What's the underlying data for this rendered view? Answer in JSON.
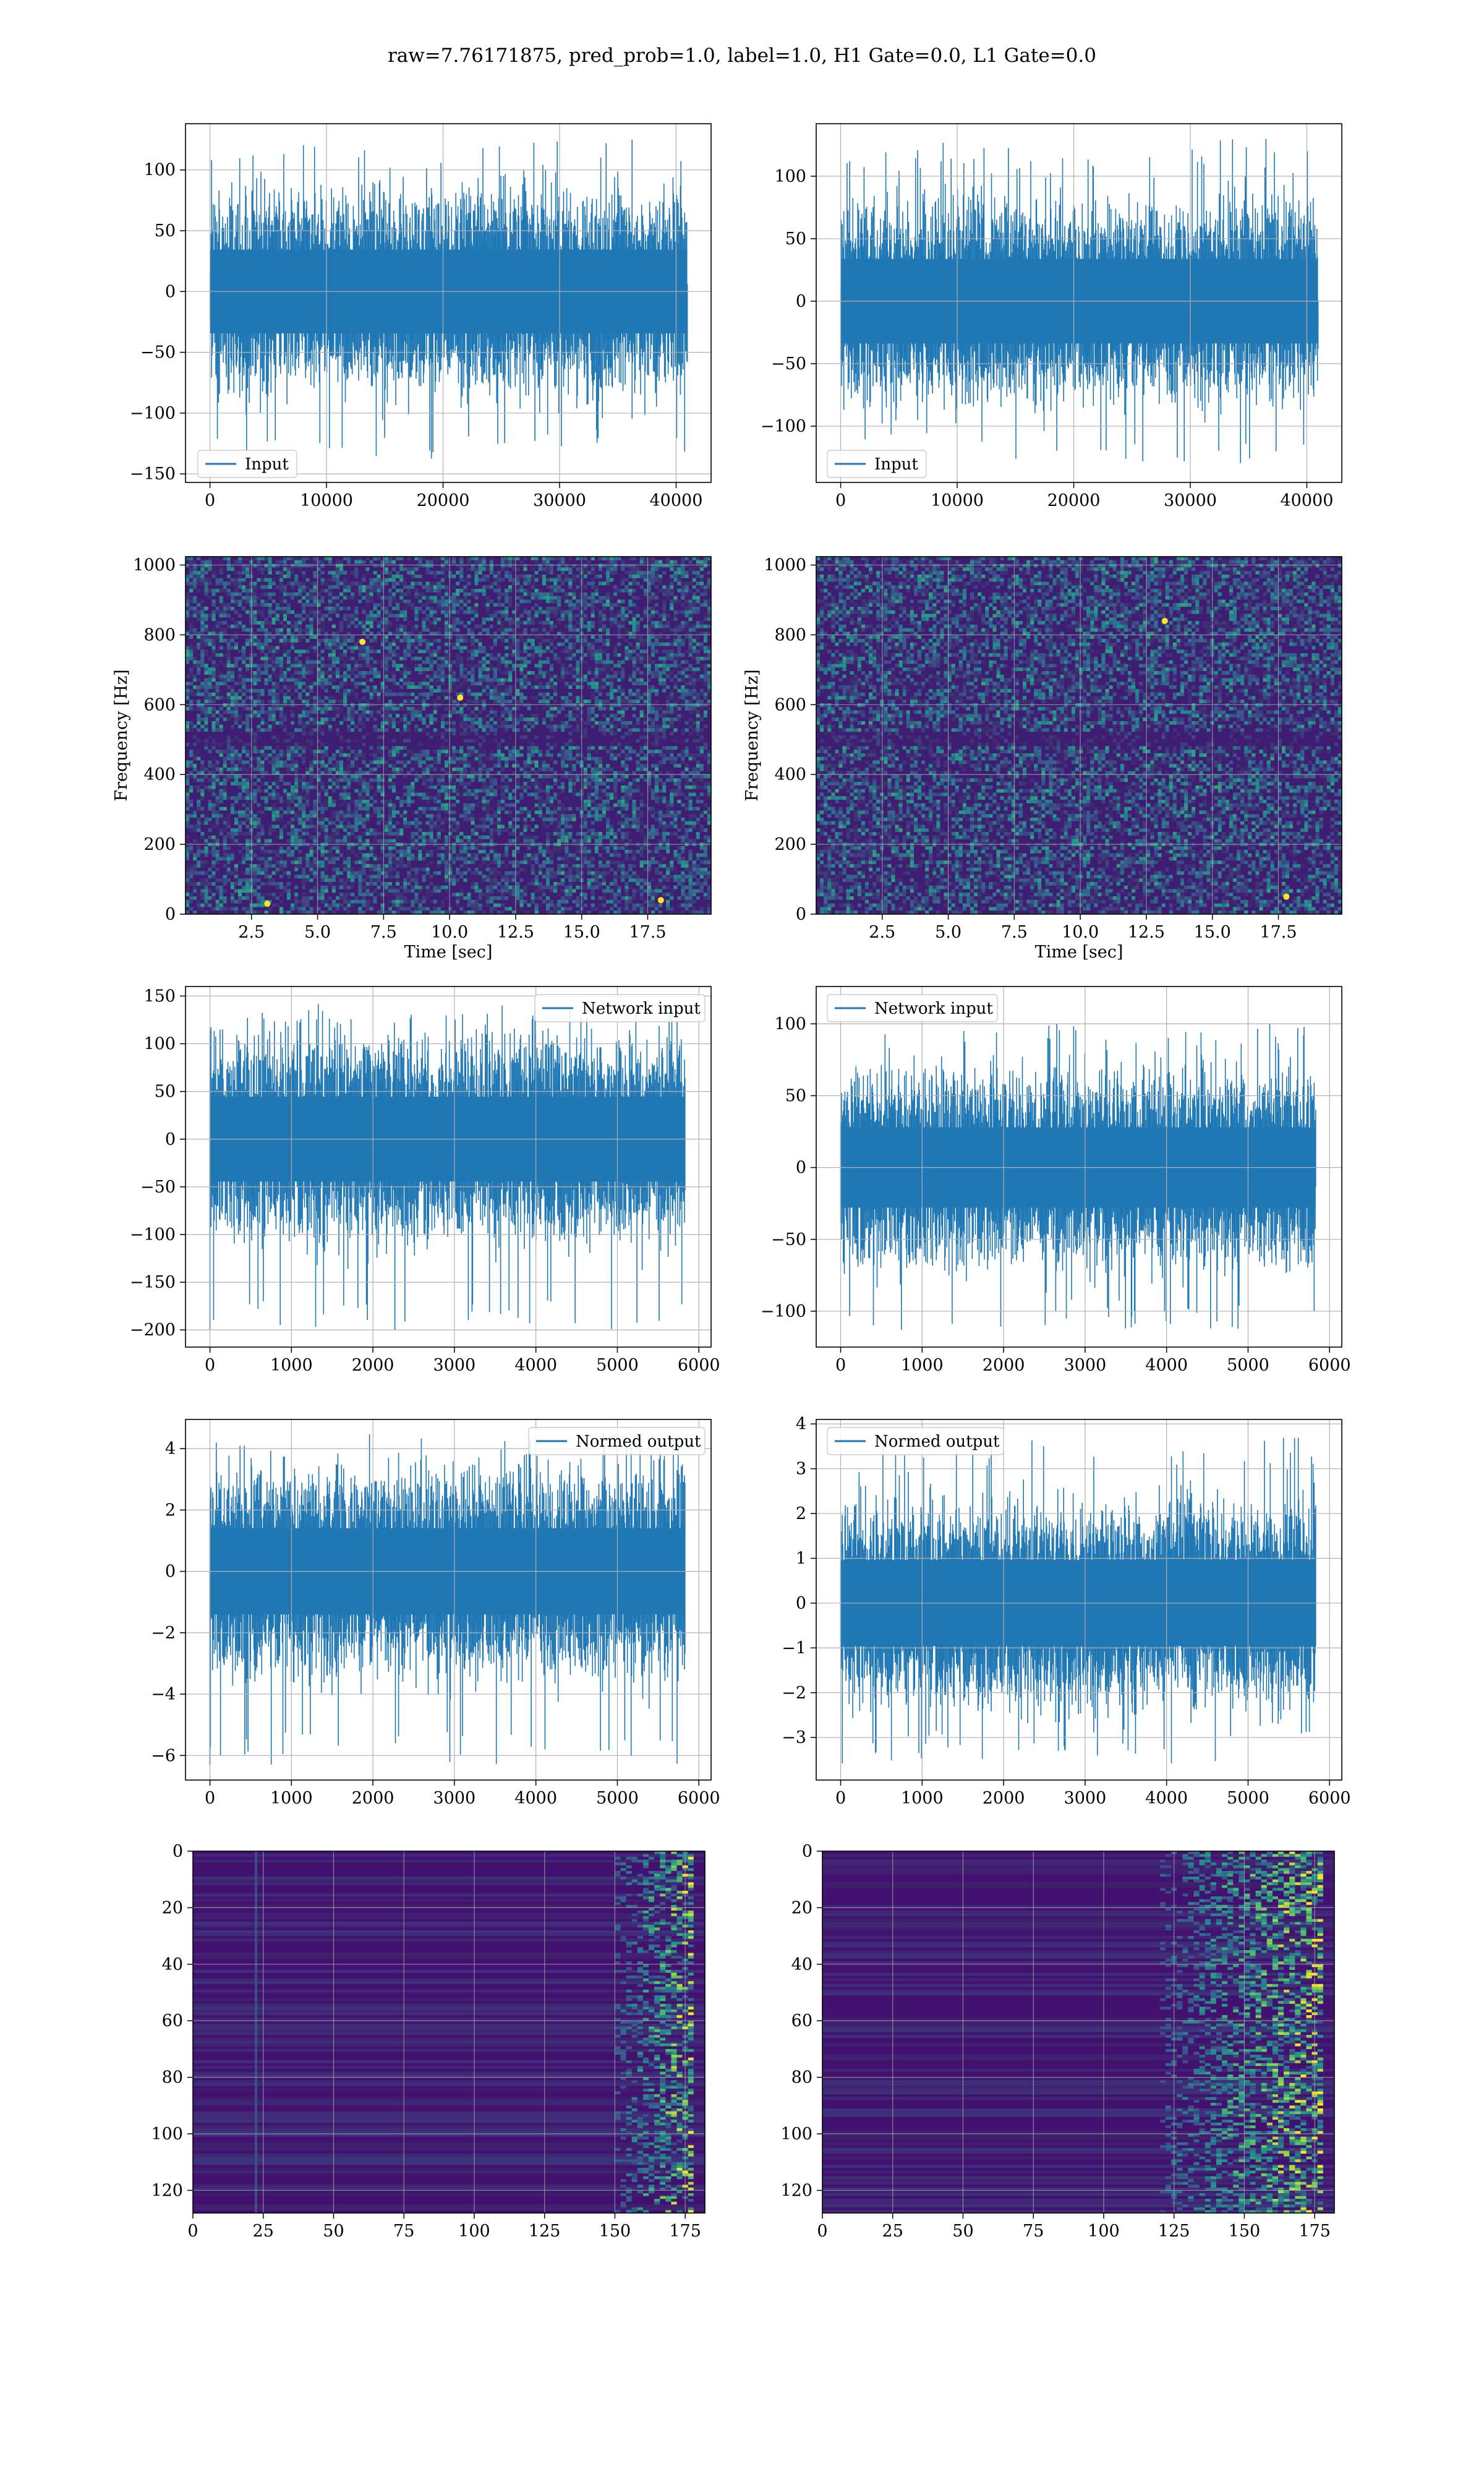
{
  "suptitle": "raw=7.76171875, pred_prob=1.0, label=1.0, H1 Gate=0.0, L1 Gate=0.0",
  "colors": {
    "line": "#1f77b4",
    "grid": "#b0b0b0",
    "spec_bg": "#3b0f6f",
    "spec_hot": "#35b779",
    "spec_peak": "#fde725"
  },
  "chart_data": [
    {
      "id": "h1-input",
      "type": "line",
      "series": [
        {
          "name": "Input",
          "x_range": [
            0,
            40960
          ],
          "y_range": [
            -140,
            125
          ]
        }
      ],
      "xlim": [
        -2100,
        43000
      ],
      "ylim": [
        -157,
        138
      ],
      "xticks": [
        0,
        10000,
        20000,
        30000,
        40000
      ],
      "yticks": [
        -150,
        -100,
        -50,
        0,
        50,
        100
      ],
      "xtick_labels": [
        "0",
        "10000",
        "20000",
        "30000",
        "40000"
      ],
      "ytick_labels": [
        "−150",
        "−100",
        "−50",
        "0",
        "50",
        "100"
      ],
      "legend": "lower-left",
      "grid": true
    },
    {
      "id": "l1-input",
      "type": "line",
      "series": [
        {
          "name": "Input",
          "x_range": [
            0,
            40960
          ],
          "y_range": [
            -130,
            130
          ]
        }
      ],
      "xlim": [
        -2100,
        43000
      ],
      "ylim": [
        -145,
        142
      ],
      "xticks": [
        0,
        10000,
        20000,
        30000,
        40000
      ],
      "yticks": [
        -100,
        -50,
        0,
        50,
        100
      ],
      "xtick_labels": [
        "0",
        "10000",
        "20000",
        "30000",
        "40000"
      ],
      "ytick_labels": [
        "−100",
        "−50",
        "0",
        "50",
        "100"
      ],
      "legend": "lower-left",
      "grid": true
    },
    {
      "id": "h1-spectrogram",
      "type": "heatmap",
      "xlim": [
        0,
        19.9
      ],
      "ylim": [
        0,
        1024
      ],
      "xticks": [
        2.5,
        5.0,
        7.5,
        10.0,
        12.5,
        15.0,
        17.5
      ],
      "yticks": [
        0,
        200,
        400,
        600,
        800,
        1000
      ],
      "xtick_labels": [
        "2.5",
        "5.0",
        "7.5",
        "10.0",
        "12.5",
        "15.0",
        "17.5"
      ],
      "ytick_labels": [
        "0",
        "200",
        "400",
        "600",
        "800",
        "1000"
      ],
      "xlabel": "Time [sec]",
      "ylabel": "Frequency [Hz]",
      "grid": true
    },
    {
      "id": "l1-spectrogram",
      "type": "heatmap",
      "xlim": [
        0,
        19.9
      ],
      "ylim": [
        0,
        1024
      ],
      "xticks": [
        2.5,
        5.0,
        7.5,
        10.0,
        12.5,
        15.0,
        17.5
      ],
      "yticks": [
        0,
        200,
        400,
        600,
        800,
        1000
      ],
      "xtick_labels": [
        "2.5",
        "5.0",
        "7.5",
        "10.0",
        "12.5",
        "15.0",
        "17.5"
      ],
      "ytick_labels": [
        "0",
        "200",
        "400",
        "600",
        "800",
        "1000"
      ],
      "xlabel": "Time [sec]",
      "ylabel": "Frequency [Hz]",
      "grid": true
    },
    {
      "id": "h1-network-input",
      "type": "line",
      "series": [
        {
          "name": "Network input",
          "x_range": [
            0,
            5830
          ],
          "y_range": [
            -200,
            142
          ]
        }
      ],
      "xlim": [
        -300,
        6150
      ],
      "ylim": [
        -218,
        160
      ],
      "xticks": [
        0,
        1000,
        2000,
        3000,
        4000,
        5000,
        6000
      ],
      "yticks": [
        -200,
        -150,
        -100,
        -50,
        0,
        50,
        100,
        150
      ],
      "xtick_labels": [
        "0",
        "1000",
        "2000",
        "3000",
        "4000",
        "5000",
        "6000"
      ],
      "ytick_labels": [
        "−200",
        "−150",
        "−100",
        "−50",
        "0",
        "50",
        "100",
        "150"
      ],
      "legend": "upper-right",
      "grid": true
    },
    {
      "id": "l1-network-input",
      "type": "line",
      "series": [
        {
          "name": "Network input",
          "x_range": [
            0,
            5830
          ],
          "y_range": [
            -113,
            102
          ]
        }
      ],
      "xlim": [
        -300,
        6150
      ],
      "ylim": [
        -125,
        126
      ],
      "xticks": [
        0,
        1000,
        2000,
        3000,
        4000,
        5000,
        6000
      ],
      "yticks": [
        -100,
        -50,
        0,
        50,
        100
      ],
      "xtick_labels": [
        "0",
        "1000",
        "2000",
        "3000",
        "4000",
        "5000",
        "6000"
      ],
      "ytick_labels": [
        "−100",
        "−50",
        "0",
        "50",
        "100"
      ],
      "legend": "upper-left",
      "grid": true
    },
    {
      "id": "h1-normed-output",
      "type": "line",
      "series": [
        {
          "name": "Normed output",
          "x_range": [
            0,
            5830
          ],
          "y_range": [
            -6.3,
            4.5
          ]
        }
      ],
      "xlim": [
        -300,
        6150
      ],
      "ylim": [
        -6.8,
        4.95
      ],
      "xticks": [
        0,
        1000,
        2000,
        3000,
        4000,
        5000,
        6000
      ],
      "yticks": [
        -6,
        -4,
        -2,
        0,
        2,
        4
      ],
      "xtick_labels": [
        "0",
        "1000",
        "2000",
        "3000",
        "4000",
        "5000",
        "6000"
      ],
      "ytick_labels": [
        "−6",
        "−4",
        "−2",
        "0",
        "2",
        "4"
      ],
      "legend": "upper-right",
      "grid": true
    },
    {
      "id": "l1-normed-output",
      "type": "line",
      "series": [
        {
          "name": "Normed output",
          "x_range": [
            0,
            5830
          ],
          "y_range": [
            -3.6,
            3.8
          ]
        }
      ],
      "xlim": [
        -300,
        6150
      ],
      "ylim": [
        -3.95,
        4.1
      ],
      "xticks": [
        0,
        1000,
        2000,
        3000,
        4000,
        5000,
        6000
      ],
      "yticks": [
        -3,
        -2,
        -1,
        0,
        1,
        2,
        3,
        4
      ],
      "xtick_labels": [
        "0",
        "1000",
        "2000",
        "3000",
        "4000",
        "5000",
        "6000"
      ],
      "ytick_labels": [
        "−3",
        "−2",
        "−1",
        "0",
        "1",
        "2",
        "3",
        "4"
      ],
      "legend": "upper-left",
      "grid": true
    },
    {
      "id": "h1-feature-map",
      "type": "heatmap",
      "xlim": [
        0,
        182
      ],
      "ylim": [
        128,
        0
      ],
      "y_inverted": true,
      "xticks": [
        0,
        25,
        50,
        75,
        100,
        125,
        150,
        175
      ],
      "yticks": [
        0,
        20,
        40,
        60,
        80,
        100,
        120
      ],
      "xtick_labels": [
        "0",
        "25",
        "50",
        "75",
        "100",
        "125",
        "150",
        "175"
      ],
      "ytick_labels": [
        "0",
        "20",
        "40",
        "60",
        "80",
        "100",
        "120"
      ],
      "grid": true
    },
    {
      "id": "l1-feature-map",
      "type": "heatmap",
      "xlim": [
        0,
        182
      ],
      "ylim": [
        128,
        0
      ],
      "y_inverted": true,
      "xticks": [
        0,
        25,
        50,
        75,
        100,
        125,
        150,
        175
      ],
      "yticks": [
        0,
        20,
        40,
        60,
        80,
        100,
        120
      ],
      "xtick_labels": [
        "0",
        "25",
        "50",
        "75",
        "100",
        "125",
        "150",
        "175"
      ],
      "ytick_labels": [
        "0",
        "20",
        "40",
        "60",
        "80",
        "100",
        "120"
      ],
      "grid": true
    }
  ]
}
